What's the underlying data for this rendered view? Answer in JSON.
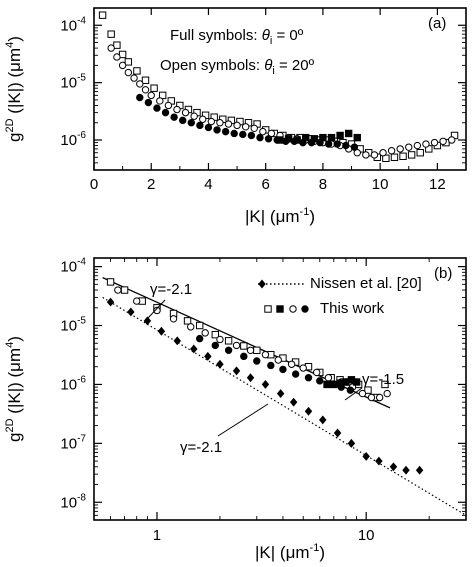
{
  "chart_data": [
    {
      "type": "scatter",
      "panel_label": "(a)",
      "xlabel": "|K| (μm⁻¹)",
      "ylabel": "g²ᴰ (|K|) (μm⁴)",
      "ylabel_base": "g",
      "ylabel_sup": "2D",
      "ylabel_mid": " (|K|) (",
      "ylabel_unit": "μm",
      "ylabel_unit_sup": "4",
      "ylabel_end": ")",
      "xlabel_main": "|K| (μm",
      "xlabel_sup": "-1",
      "xlabel_end": ")",
      "xlim": [
        0,
        13
      ],
      "ylim": [
        3e-07,
        0.0002
      ],
      "yscale": "log",
      "x_ticks": [
        0,
        2,
        4,
        6,
        8,
        10,
        12
      ],
      "x_tick_labels": [
        "0",
        "2",
        "4",
        "6",
        "8",
        "10",
        "12"
      ],
      "y_ticks": [
        1e-06,
        1e-05,
        0.0001
      ],
      "y_tick_labels": [
        {
          "base": "10",
          "exp": "-6"
        },
        {
          "base": "10",
          "exp": "-5"
        },
        {
          "base": "10",
          "exp": "-4"
        }
      ],
      "annotations": [
        {
          "prefix": "Full symbols: ",
          "var": "θ",
          "sub": "i",
          "suffix": " = 0º"
        },
        {
          "prefix": "Open symbols: ",
          "var": "θ",
          "sub": "i",
          "suffix": " = 20º"
        }
      ],
      "series": [
        {
          "marker": "open-square",
          "x": [
            0.3,
            0.6,
            0.8,
            1.0,
            1.2,
            1.5,
            1.8,
            2.1,
            2.4,
            2.7,
            3.0,
            3.3,
            3.6,
            3.9,
            4.2,
            4.5,
            4.8,
            5.1,
            5.4,
            5.7,
            6.0,
            6.3,
            6.6,
            6.9,
            7.2,
            7.5,
            7.8,
            8.1,
            8.4,
            8.7,
            9.0,
            9.3,
            9.6,
            9.9,
            10.2,
            10.5,
            10.8,
            11.1,
            11.4,
            11.7,
            12.0,
            12.3,
            12.6
          ],
          "y": [
            0.00015,
            7e-05,
            4.5e-05,
            3.1e-05,
            2.3e-05,
            1.6e-05,
            1.1e-05,
            8e-06,
            6e-06,
            4.8e-06,
            4e-06,
            3.4e-06,
            3e-06,
            2.7e-06,
            2.5e-06,
            2.3e-06,
            2.2e-06,
            2.1e-06,
            2e-06,
            1.9e-06,
            1.5e-06,
            1.3e-06,
            1.2e-06,
            1.1e-06,
            1.1e-06,
            1.05e-06,
            1e-06,
            1e-06,
            9.5e-07,
            9e-07,
            8.5e-07,
            7e-07,
            6e-07,
            5e-07,
            4.8e-07,
            5e-07,
            5.2e-07,
            5.5e-07,
            6e-07,
            7e-07,
            8e-07,
            9e-07,
            1.2e-06
          ]
        },
        {
          "marker": "open-circle",
          "x": [
            0.6,
            0.8,
            1.0,
            1.2,
            1.4,
            1.6,
            1.8,
            2.0,
            2.3,
            2.6,
            2.9,
            3.2,
            3.5,
            3.8,
            4.1,
            4.4,
            4.7,
            5.0,
            5.3,
            5.6,
            5.9,
            6.2,
            6.5,
            6.8,
            7.1,
            7.4,
            7.7,
            8.0,
            8.3,
            8.6,
            8.9,
            9.2,
            9.5,
            9.8,
            10.1,
            10.4,
            10.7,
            11.0,
            11.3,
            11.6,
            11.9,
            12.2,
            12.5
          ],
          "y": [
            4e-05,
            2.8e-05,
            2e-05,
            1.5e-05,
            1.2e-05,
            9.5e-06,
            7.5e-06,
            6e-06,
            4.8e-06,
            4e-06,
            3.4e-06,
            3e-06,
            2.6e-06,
            2.3e-06,
            2.1e-06,
            2e-06,
            1.9e-06,
            1.8e-06,
            1.7e-06,
            1.6e-06,
            1.4e-06,
            1.3e-06,
            1.2e-06,
            1.1e-06,
            1.05e-06,
            1e-06,
            9.5e-07,
            9e-07,
            8.5e-07,
            8e-07,
            7e-07,
            6e-07,
            5.5e-07,
            5.5e-07,
            6e-07,
            6.5e-07,
            7e-07,
            7.5e-07,
            8e-07,
            8.5e-07,
            9e-07,
            9.5e-07,
            1e-06
          ]
        },
        {
          "marker": "filled-circle",
          "x": [
            1.6,
            1.9,
            2.2,
            2.5,
            2.8,
            3.1,
            3.4,
            3.7,
            4.0,
            4.3,
            4.6,
            4.9,
            5.2,
            5.5,
            5.8,
            6.1,
            6.4,
            6.7,
            7.0,
            7.3,
            7.6,
            7.9,
            8.2,
            8.5,
            8.8,
            9.1
          ],
          "y": [
            5.5e-06,
            4.5e-06,
            3.6e-06,
            3e-06,
            2.5e-06,
            2.2e-06,
            2e-06,
            1.8e-06,
            1.65e-06,
            1.5e-06,
            1.4e-06,
            1.3e-06,
            1.25e-06,
            1.2e-06,
            1.1e-06,
            1.05e-06,
            1e-06,
            9.5e-07,
            9.5e-07,
            9e-07,
            9e-07,
            9e-07,
            8.5e-07,
            8.5e-07,
            8e-07,
            7.5e-07
          ]
        },
        {
          "marker": "filled-square",
          "x": [
            6.5,
            6.8,
            7.1,
            7.4,
            7.7,
            8.0,
            8.3,
            8.6,
            8.9,
            9.2
          ],
          "y": [
            1e-06,
            1.05e-06,
            1e-06,
            1.1e-06,
            1.05e-06,
            1.1e-06,
            1.1e-06,
            1.2e-06,
            1.3e-06,
            1.1e-06
          ]
        }
      ]
    },
    {
      "type": "scatter",
      "panel_label": "(b)",
      "xlabel": "|K| (μm⁻¹)",
      "ylabel": "g²ᴰ (|K|) (μm⁴)",
      "ylabel_base": "g",
      "ylabel_sup": "2D",
      "ylabel_mid": " (|K|) (",
      "ylabel_unit": "μm",
      "ylabel_unit_sup": "4",
      "ylabel_end": ")",
      "xlabel_main": "|K| (μm",
      "xlabel_sup": "-1",
      "xlabel_end": ")",
      "xscale": "log",
      "yscale": "log",
      "xlim": [
        0.5,
        30
      ],
      "ylim": [
        5e-09,
        0.00014
      ],
      "x_ticks": [
        1,
        10
      ],
      "x_tick_labels": [
        "1",
        "10"
      ],
      "y_ticks": [
        1e-08,
        1e-07,
        1e-06,
        1e-05,
        0.0001
      ],
      "y_tick_labels": [
        {
          "base": "10",
          "exp": "-8"
        },
        {
          "base": "10",
          "exp": "-7"
        },
        {
          "base": "10",
          "exp": "-6"
        },
        {
          "base": "10",
          "exp": "-5"
        },
        {
          "base": "10",
          "exp": "-4"
        }
      ],
      "legend": {
        "position": "top-right",
        "entries": [
          {
            "label": "Nissen et al. [20]",
            "style": "dotted-diamond"
          },
          {
            "label": "This work",
            "style": "mixed-symbols"
          }
        ]
      },
      "slope_annotations": [
        {
          "text": "γ=-2.1",
          "position": "upper-left"
        },
        {
          "text": "γ=-1.5",
          "position": "right"
        },
        {
          "text": "γ=-2.1",
          "position": "lower-middle"
        }
      ],
      "fit_lines": [
        {
          "style": "solid",
          "x": [
            0.55,
            13
          ],
          "y": [
            6.5e-05,
            4e-07
          ]
        },
        {
          "style": "dotted",
          "x": [
            0.55,
            30
          ],
          "y": [
            3e-05,
            6e-09
          ]
        }
      ],
      "series": [
        {
          "name": "Nissen et al. [20]",
          "marker": "filled-diamond",
          "x": [
            0.6,
            0.75,
            0.9,
            1.05,
            1.25,
            1.5,
            1.75,
            2.0,
            2.4,
            2.8,
            3.3,
            3.9,
            4.5,
            5.3,
            6.2,
            7.3,
            8.5,
            10.0,
            11.5,
            13.5,
            15.5,
            18.0
          ],
          "y": [
            2.5e-05,
            1.7e-05,
            1.2e-05,
            8e-06,
            5.5e-06,
            4e-06,
            3e-06,
            2.2e-06,
            1.7e-06,
            1.3e-06,
            1e-06,
            7e-07,
            5e-07,
            3.5e-07,
            2.5e-07,
            1.5e-07,
            1e-07,
            6e-08,
            5e-08,
            4e-08,
            3.5e-08,
            3.5e-08
          ]
        },
        {
          "name": "This work",
          "marker": "open-square",
          "x": [
            0.6,
            0.7,
            0.85,
            1.0,
            1.2,
            1.4,
            1.6,
            1.9,
            2.2,
            2.6,
            3.0,
            3.5,
            4.0,
            4.6,
            5.3,
            6.0,
            6.8,
            7.5,
            8.3,
            9.2,
            10.2,
            11.2,
            12.3
          ],
          "y": [
            5.5e-05,
            4e-05,
            2.6e-05,
            2e-05,
            1.6e-05,
            1.2e-05,
            1e-05,
            7e-06,
            5.5e-06,
            4.5e-06,
            3.8e-06,
            3.2e-06,
            2.8e-06,
            2.4e-06,
            2e-06,
            1.6e-06,
            1.3e-06,
            1.2e-06,
            1.1e-06,
            1e-06,
            8e-07,
            6e-07,
            1e-06
          ]
        },
        {
          "name": "This work",
          "marker": "open-circle",
          "x": [
            0.65,
            0.8,
            1.0,
            1.2,
            1.45,
            1.7,
            2.0,
            2.4,
            2.8,
            3.3,
            3.8,
            4.4,
            5.0,
            5.8,
            6.6,
            7.6,
            8.6,
            9.6,
            10.6,
            11.6,
            12.6
          ],
          "y": [
            4e-05,
            2.6e-05,
            1.8e-05,
            1.3e-05,
            9.5e-06,
            7.5e-06,
            5.8e-06,
            4.6e-06,
            3.8e-06,
            3.2e-06,
            2.6e-06,
            2.2e-06,
            1.9e-06,
            1.6e-06,
            1.3e-06,
            1.1e-06,
            9e-07,
            7e-07,
            6e-07,
            6e-07,
            7e-07
          ]
        },
        {
          "name": "This work",
          "marker": "filled-circle",
          "x": [
            1.6,
            1.9,
            2.2,
            2.6,
            3.0,
            3.5,
            4.0,
            4.6,
            5.3,
            6.0,
            6.8,
            7.6,
            8.4
          ],
          "y": [
            6e-06,
            4.6e-06,
            3.8e-06,
            3e-06,
            2.5e-06,
            2.1e-06,
            1.8e-06,
            1.5e-06,
            1.3e-06,
            1.15e-06,
            1e-06,
            9e-07,
            8e-07
          ]
        },
        {
          "name": "This work",
          "marker": "filled-square",
          "x": [
            6.5,
            7.0,
            7.5,
            8.0,
            8.5,
            9.0
          ],
          "y": [
            1e-06,
            1e-06,
            1.05e-06,
            1.1e-06,
            1.2e-06,
            1.1e-06
          ]
        }
      ]
    }
  ]
}
